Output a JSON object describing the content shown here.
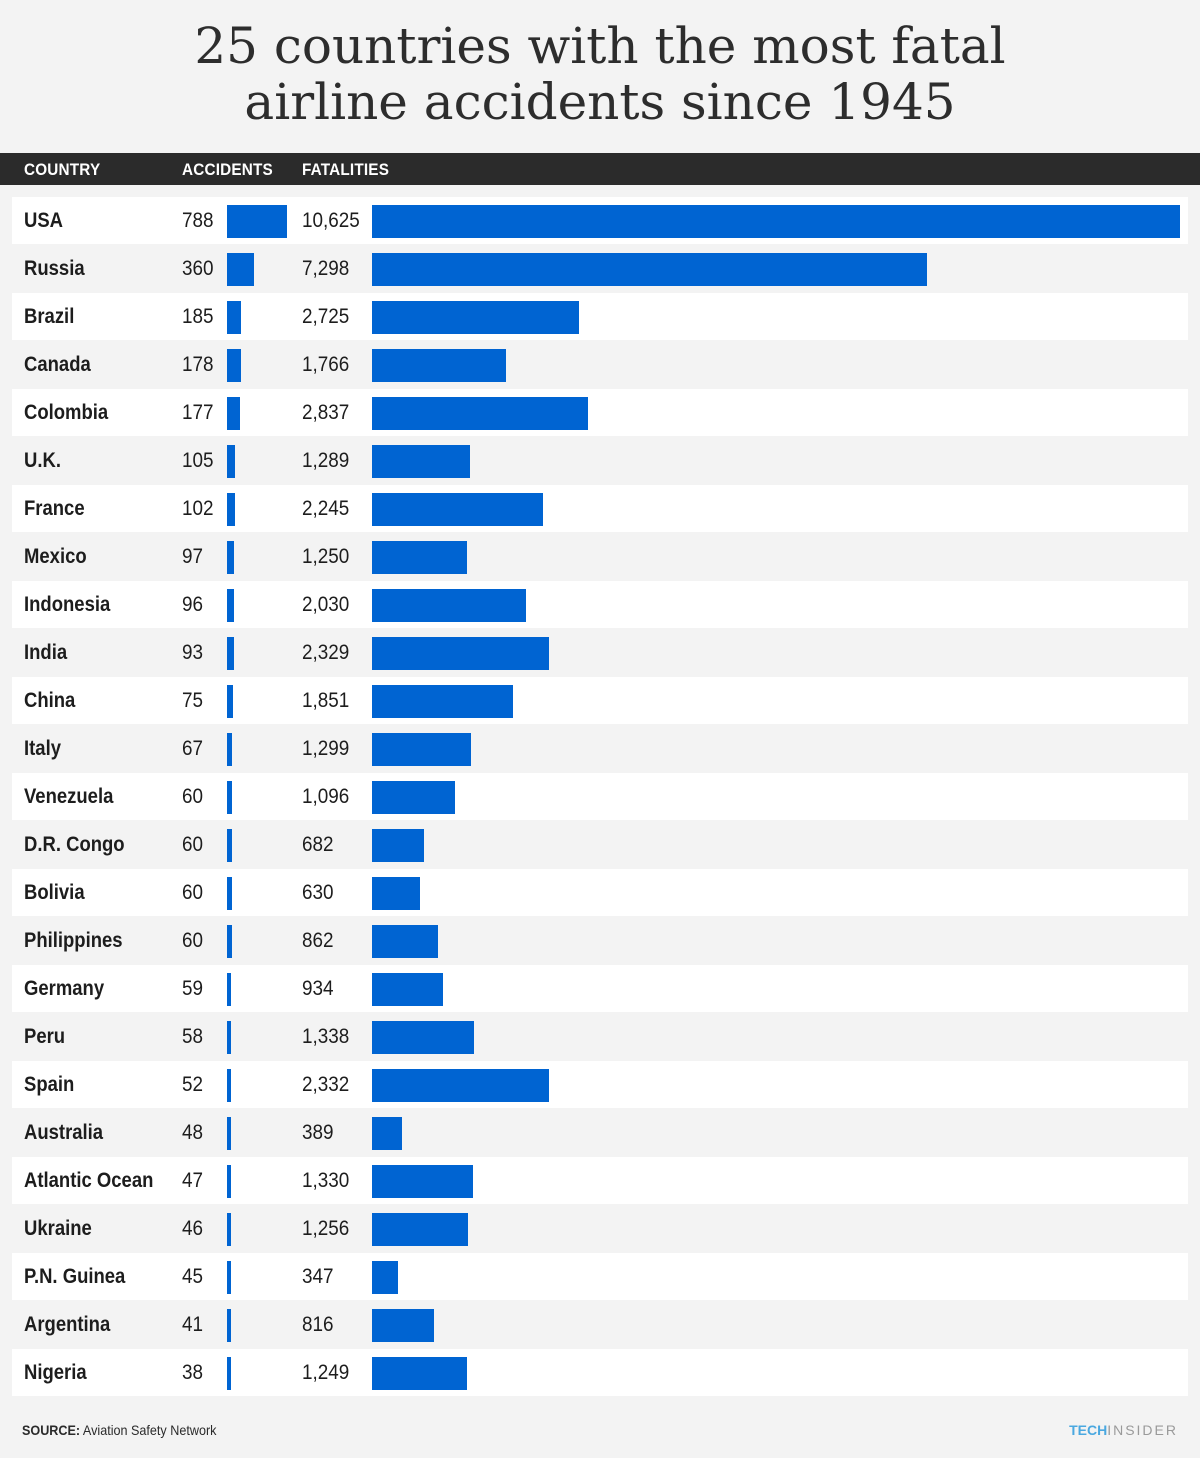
{
  "title_lines": [
    "25 countries with the most fatal",
    "airline accidents since 1945"
  ],
  "header": {
    "country": "COUNTRY",
    "accidents": "ACCIDENTS",
    "fatalities": "FATALITIES"
  },
  "chart_data": {
    "type": "bar",
    "title": "25 countries with the most fatal airline accidents since 1945",
    "categories": [
      "USA",
      "Russia",
      "Brazil",
      "Canada",
      "Colombia",
      "U.K.",
      "France",
      "Mexico",
      "Indonesia",
      "India",
      "China",
      "Italy",
      "Venezuela",
      "D.R. Congo",
      "Bolivia",
      "Philippines",
      "Germany",
      "Peru",
      "Spain",
      "Australia",
      "Atlantic Ocean",
      "Ukraine",
      "P.N. Guinea",
      "Argentina",
      "Nigeria"
    ],
    "series": [
      {
        "name": "ACCIDENTS",
        "values": [
          788,
          360,
          185,
          178,
          177,
          105,
          102,
          97,
          96,
          93,
          75,
          67,
          60,
          60,
          60,
          60,
          59,
          58,
          52,
          48,
          47,
          46,
          45,
          41,
          38
        ]
      },
      {
        "name": "FATALITIES",
        "values": [
          10625,
          7298,
          2725,
          1766,
          2837,
          1289,
          2245,
          1250,
          2030,
          2329,
          1851,
          1299,
          1096,
          682,
          630,
          862,
          934,
          1338,
          2332,
          389,
          1330,
          1256,
          347,
          816,
          1249
        ]
      }
    ],
    "accident_labels": [
      "788",
      "360",
      "185",
      "178",
      "177",
      "105",
      "102",
      "97",
      "96",
      "93",
      "75",
      "67",
      "60",
      "60",
      "60",
      "60",
      "59",
      "58",
      "52",
      "48",
      "47",
      "46",
      "45",
      "41",
      "38"
    ],
    "fatality_labels": [
      "10,625",
      "7,298",
      "2,725",
      "1,766",
      "2,837",
      "1,289",
      "2,245",
      "1,250",
      "2,030",
      "2,329",
      "1,851",
      "1,299",
      "1,096",
      "682",
      "630",
      "862",
      "934",
      "1,338",
      "2,332",
      "389",
      "1,330",
      "1,256",
      "347",
      "816",
      "1,249"
    ],
    "bar_color": "#0064d2"
  },
  "source": {
    "label": "SOURCE:",
    "text": " Aviation Safety Network"
  },
  "brand": {
    "tech": "TECH",
    "insider": "INSIDER"
  },
  "colors": {
    "accent": "#0064d2",
    "header_bg": "#2b2b2b",
    "brand_tech": "#4aa8e0"
  }
}
